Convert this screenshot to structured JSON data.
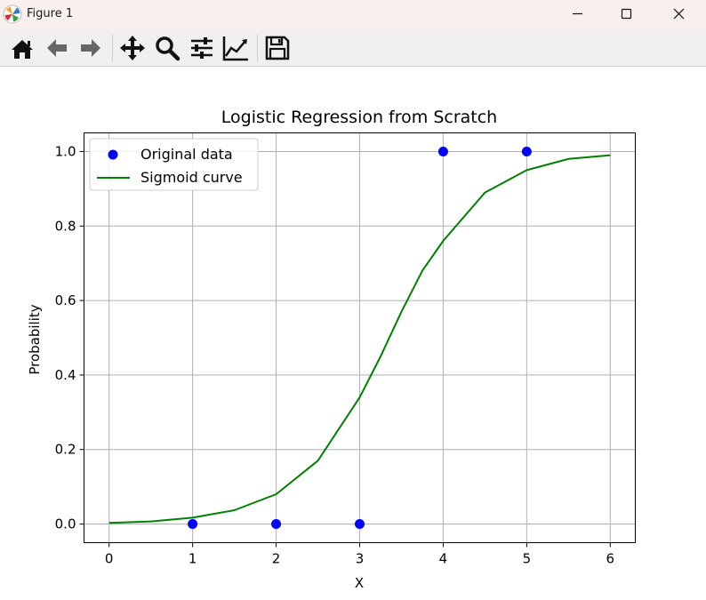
{
  "window": {
    "title": "Figure 1",
    "icons": [
      "matplotlib-logo-icon",
      "minimize-icon",
      "maximize-icon",
      "close-icon"
    ]
  },
  "toolbar": {
    "tools": [
      "home",
      "back",
      "forward",
      "pan",
      "zoom",
      "configure-subplots",
      "edit-axis",
      "save"
    ]
  },
  "chart_data": {
    "type": "scatter",
    "title": "Logistic Regression from Scratch",
    "xlabel": "X",
    "ylabel": "Probability",
    "xlim": [
      -0.3,
      6.3
    ],
    "ylim": [
      -0.05,
      1.05
    ],
    "xticks": [
      "0",
      "1",
      "2",
      "3",
      "4",
      "5",
      "6"
    ],
    "yticks": [
      "0.0",
      "0.2",
      "0.4",
      "0.6",
      "0.8",
      "1.0"
    ],
    "grid": true,
    "legend_position": "upper-left",
    "series": [
      {
        "name": "Original data",
        "kind": "scatter",
        "color": "#0000ff",
        "x": [
          1,
          2,
          3,
          4,
          5
        ],
        "y": [
          0,
          0,
          0,
          1,
          1
        ]
      },
      {
        "name": "Sigmoid curve",
        "kind": "line",
        "color": "#008000",
        "x": [
          0,
          0.5,
          1,
          1.5,
          2,
          2.5,
          3,
          3.25,
          3.5,
          3.75,
          4,
          4.5,
          5,
          5.5,
          6
        ],
        "y": [
          0.003,
          0.007,
          0.017,
          0.037,
          0.08,
          0.17,
          0.34,
          0.45,
          0.57,
          0.68,
          0.76,
          0.89,
          0.95,
          0.98,
          0.99
        ]
      }
    ]
  }
}
